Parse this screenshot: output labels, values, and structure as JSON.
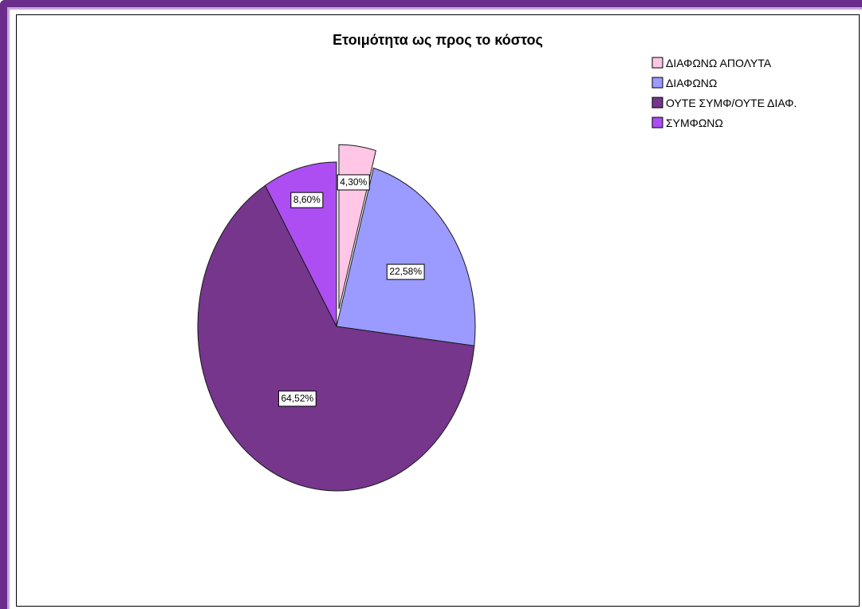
{
  "chart_data": {
    "type": "pie",
    "title": "Ετοιμότητα ως προς το κόστος",
    "legend_position": "top-right",
    "slices": [
      {
        "name": "ΔΙΑΦΩΝΩ ΑΠΟΛΥΤΑ",
        "value": 4.3,
        "label": "4,30%",
        "color": "#ffc6e5",
        "exploded": true
      },
      {
        "name": "ΔΙΑΦΩΝΩ",
        "value": 22.58,
        "label": "22,58%",
        "color": "#9b9bff",
        "exploded": false
      },
      {
        "name": "ΟΥΤΕ ΣΥΜΦ/ΟΥΤΕ ΔΙΑΦ.",
        "value": 64.52,
        "label": "64,52%",
        "color": "#76368c",
        "exploded": false
      },
      {
        "name": "ΣΥΜΦΩΝΩ",
        "value": 8.6,
        "label": "8,60%",
        "color": "#ad4ef2",
        "exploded": false
      }
    ]
  }
}
